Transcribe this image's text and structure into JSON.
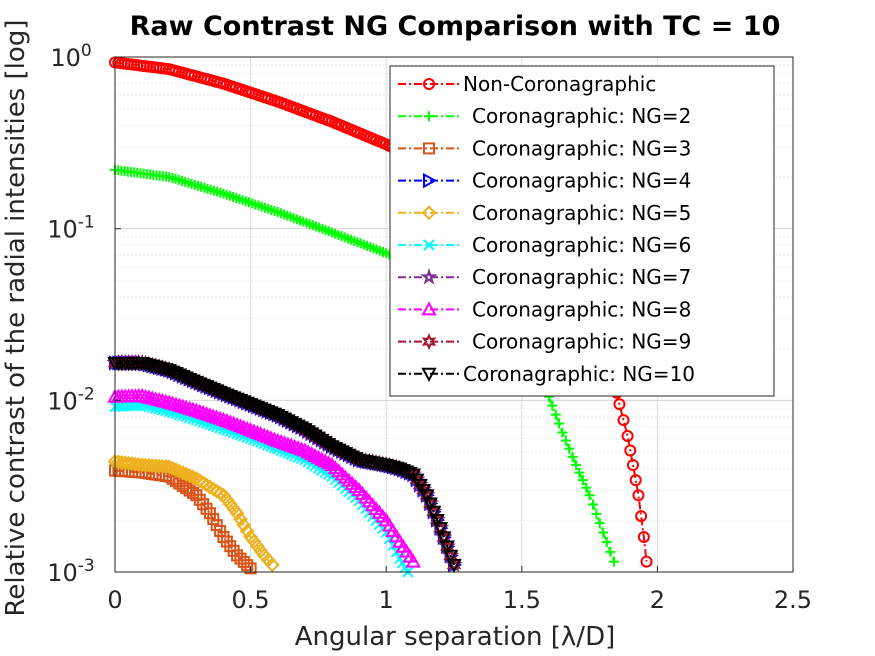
{
  "chart_data": {
    "type": "line",
    "title": "Raw Contrast NG Comparison with TC = 10",
    "xlabel": "Angular separation [λ/D]",
    "ylabel": "Relative contrast of the radial intensities [log]",
    "xlim": [
      0,
      2.5
    ],
    "ylim": [
      0.001,
      1
    ],
    "yscale": "log",
    "grid": true,
    "legend_position": "top-right",
    "x_ticks": [
      "0",
      "0.5",
      "1",
      "1.5",
      "2",
      "2.5"
    ],
    "y_ticks": [
      {
        "base": "10",
        "exp": "0"
      },
      {
        "base": "10",
        "exp": "-1"
      },
      {
        "base": "10",
        "exp": "-2"
      },
      {
        "base": "10",
        "exp": "-3"
      }
    ],
    "series": [
      {
        "name": "Non-Coronagraphic",
        "color": "#ff0000",
        "marker": "circle",
        "points": [
          [
            0,
            0.93
          ],
          [
            0.2,
            0.85
          ],
          [
            0.4,
            0.7
          ],
          [
            0.6,
            0.55
          ],
          [
            0.8,
            0.42
          ],
          [
            1.0,
            0.31
          ],
          [
            1.2,
            0.22
          ],
          [
            1.4,
            0.14
          ],
          [
            1.6,
            0.08
          ],
          [
            1.7,
            0.05
          ],
          [
            1.75,
            0.032
          ],
          [
            1.8,
            0.02
          ],
          [
            1.83,
            0.015
          ],
          [
            1.86,
            0.0095
          ],
          [
            1.89,
            0.0062
          ],
          [
            1.91,
            0.0042
          ],
          [
            1.93,
            0.0028
          ],
          [
            1.95,
            0.0016
          ],
          [
            1.96,
            0.00115
          ]
        ]
      },
      {
        "name": "Coronagraphic: NG=2",
        "color": "#00ff00",
        "marker": "plus",
        "points": [
          [
            0,
            0.22
          ],
          [
            0.2,
            0.2
          ],
          [
            0.4,
            0.16
          ],
          [
            0.6,
            0.125
          ],
          [
            0.8,
            0.095
          ],
          [
            1.0,
            0.072
          ],
          [
            1.2,
            0.052
          ],
          [
            1.4,
            0.032
          ],
          [
            1.5,
            0.022
          ],
          [
            1.55,
            0.016
          ],
          [
            1.6,
            0.0105
          ],
          [
            1.65,
            0.0065
          ],
          [
            1.7,
            0.0042
          ],
          [
            1.75,
            0.0028
          ],
          [
            1.8,
            0.0017
          ],
          [
            1.84,
            0.00115
          ]
        ]
      },
      {
        "name": "Coronagraphic: NG=3",
        "color": "#d95319",
        "marker": "square",
        "points": [
          [
            0,
            0.0039
          ],
          [
            0.1,
            0.0038
          ],
          [
            0.2,
            0.0036
          ],
          [
            0.3,
            0.0028
          ],
          [
            0.35,
            0.0022
          ],
          [
            0.4,
            0.0016
          ],
          [
            0.45,
            0.00125
          ],
          [
            0.5,
            0.00105
          ]
        ]
      },
      {
        "name": "Coronagraphic: NG=4",
        "color": "#0000ff",
        "marker": "triangle-right",
        "points": [
          [
            0,
            0.0165
          ],
          [
            0.1,
            0.0165
          ],
          [
            0.2,
            0.015
          ],
          [
            0.3,
            0.0128
          ],
          [
            0.4,
            0.011
          ],
          [
            0.5,
            0.0095
          ],
          [
            0.6,
            0.0082
          ],
          [
            0.7,
            0.0068
          ],
          [
            0.8,
            0.0054
          ],
          [
            0.9,
            0.0045
          ],
          [
            1.0,
            0.0042
          ],
          [
            1.05,
            0.004
          ],
          [
            1.1,
            0.0037
          ],
          [
            1.15,
            0.0028
          ],
          [
            1.2,
            0.0018
          ],
          [
            1.25,
            0.0011
          ]
        ]
      },
      {
        "name": "Coronagraphic: NG=5",
        "color": "#edb120",
        "marker": "diamond",
        "points": [
          [
            0,
            0.0044
          ],
          [
            0.1,
            0.0042
          ],
          [
            0.2,
            0.0041
          ],
          [
            0.3,
            0.0035
          ],
          [
            0.4,
            0.0028
          ],
          [
            0.45,
            0.0022
          ],
          [
            0.5,
            0.0016
          ],
          [
            0.55,
            0.00125
          ],
          [
            0.58,
            0.0011
          ]
        ]
      },
      {
        "name": "Coronagraphic: NG=6",
        "color": "#00ffff",
        "marker": "x",
        "points": [
          [
            0,
            0.0092
          ],
          [
            0.1,
            0.0094
          ],
          [
            0.2,
            0.0086
          ],
          [
            0.3,
            0.0077
          ],
          [
            0.4,
            0.0068
          ],
          [
            0.5,
            0.006
          ],
          [
            0.6,
            0.0052
          ],
          [
            0.7,
            0.0045
          ],
          [
            0.8,
            0.0036
          ],
          [
            0.9,
            0.0026
          ],
          [
            1.0,
            0.0017
          ],
          [
            1.05,
            0.0012
          ],
          [
            1.08,
            0.001
          ]
        ]
      },
      {
        "name": "Coronagraphic: NG=7",
        "color": "#7e2f8e",
        "marker": "star",
        "points": [
          [
            0,
            0.0165
          ],
          [
            0.1,
            0.0165
          ],
          [
            0.2,
            0.015
          ],
          [
            0.3,
            0.0128
          ],
          [
            0.4,
            0.011
          ],
          [
            0.5,
            0.0095
          ],
          [
            0.6,
            0.0082
          ],
          [
            0.7,
            0.0068
          ],
          [
            0.8,
            0.0054
          ],
          [
            0.9,
            0.0045
          ],
          [
            1.0,
            0.0042
          ],
          [
            1.05,
            0.004
          ],
          [
            1.1,
            0.0037
          ],
          [
            1.15,
            0.0028
          ],
          [
            1.2,
            0.0018
          ],
          [
            1.25,
            0.0011
          ]
        ]
      },
      {
        "name": "Coronagraphic: NG=8",
        "color": "#ff00ff",
        "marker": "triangle-up",
        "points": [
          [
            0,
            0.0105
          ],
          [
            0.1,
            0.0106
          ],
          [
            0.2,
            0.0097
          ],
          [
            0.3,
            0.0087
          ],
          [
            0.4,
            0.0077
          ],
          [
            0.5,
            0.0067
          ],
          [
            0.6,
            0.0058
          ],
          [
            0.7,
            0.0051
          ],
          [
            0.8,
            0.0042
          ],
          [
            0.9,
            0.003
          ],
          [
            1.0,
            0.002
          ],
          [
            1.05,
            0.0015
          ],
          [
            1.1,
            0.00115
          ]
        ]
      },
      {
        "name": "Coronagraphic: NG=9",
        "color": "#a2142f",
        "marker": "hexagram",
        "points": [
          [
            0,
            0.0165
          ],
          [
            0.1,
            0.0165
          ],
          [
            0.2,
            0.015
          ],
          [
            0.3,
            0.0128
          ],
          [
            0.4,
            0.011
          ],
          [
            0.5,
            0.0095
          ],
          [
            0.6,
            0.0082
          ],
          [
            0.7,
            0.0068
          ],
          [
            0.8,
            0.0054
          ],
          [
            0.9,
            0.0045
          ],
          [
            1.0,
            0.0042
          ],
          [
            1.05,
            0.004
          ],
          [
            1.1,
            0.0037
          ],
          [
            1.15,
            0.0028
          ],
          [
            1.2,
            0.0018
          ],
          [
            1.25,
            0.0011
          ]
        ]
      },
      {
        "name": "Coronagraphic: NG=10",
        "color": "#000000",
        "marker": "triangle-down",
        "points": [
          [
            0,
            0.0165
          ],
          [
            0.1,
            0.0165
          ],
          [
            0.2,
            0.015
          ],
          [
            0.3,
            0.0128
          ],
          [
            0.4,
            0.011
          ],
          [
            0.5,
            0.0095
          ],
          [
            0.6,
            0.0082
          ],
          [
            0.7,
            0.0068
          ],
          [
            0.8,
            0.0054
          ],
          [
            0.9,
            0.0045
          ],
          [
            1.0,
            0.0042
          ],
          [
            1.05,
            0.004
          ],
          [
            1.1,
            0.0037
          ],
          [
            1.15,
            0.0028
          ],
          [
            1.2,
            0.0018
          ],
          [
            1.25,
            0.0011
          ]
        ]
      }
    ]
  }
}
